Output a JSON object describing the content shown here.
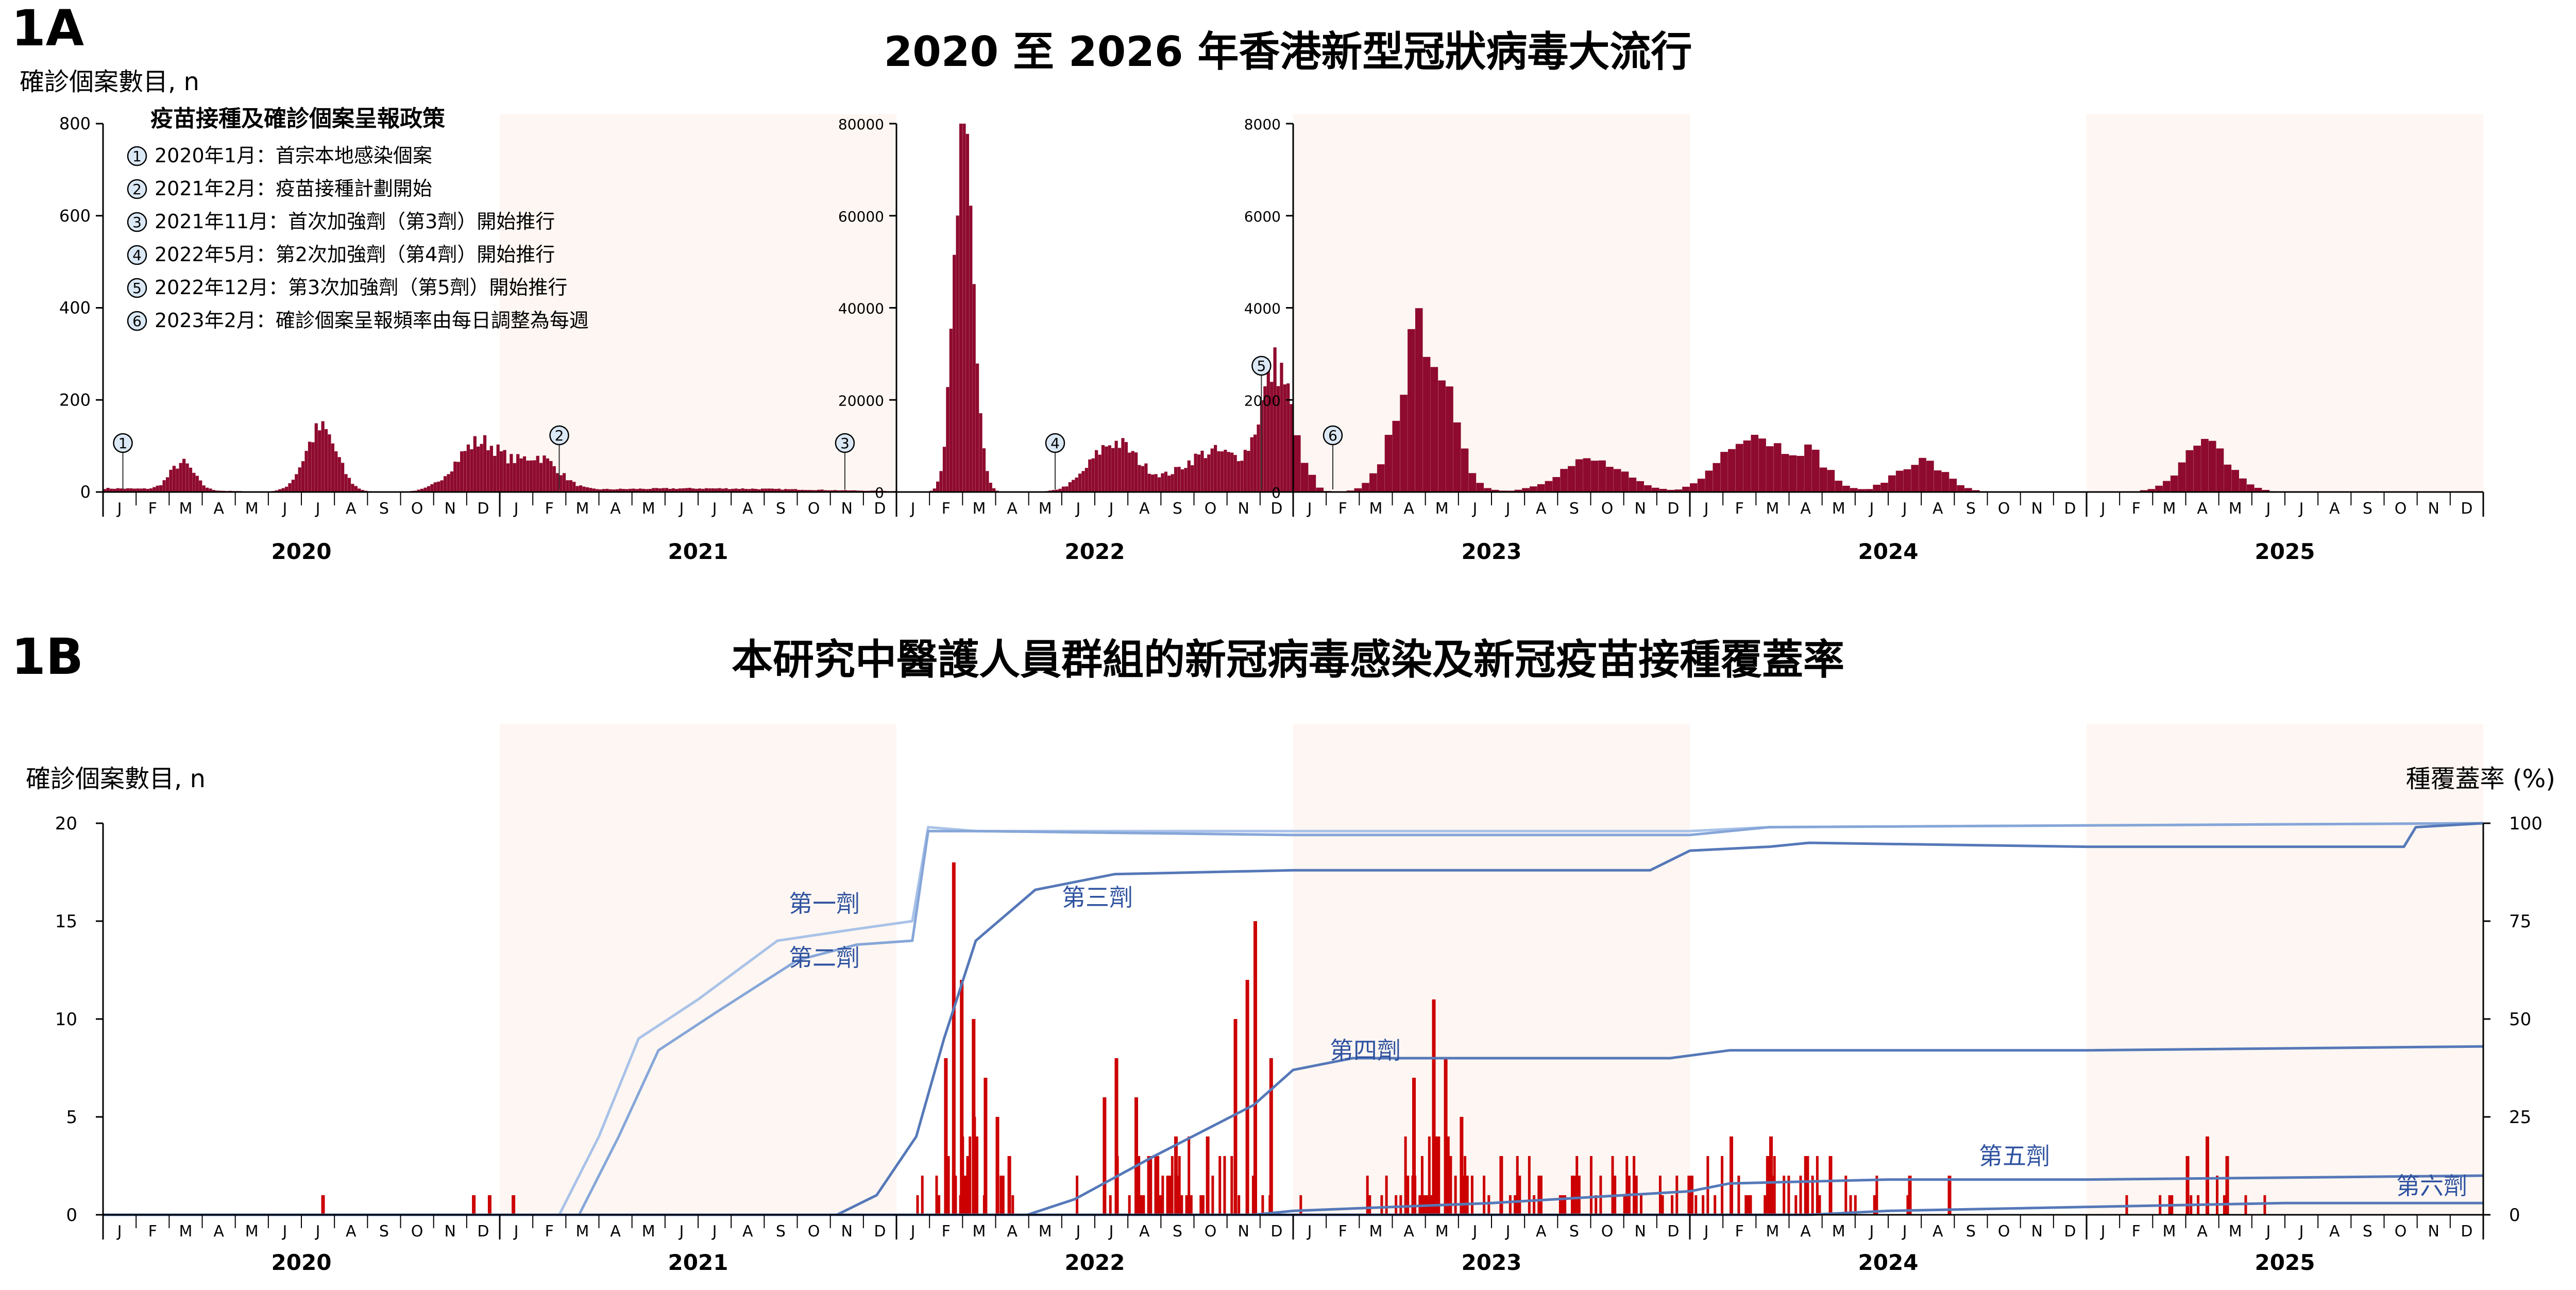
{
  "colors": {
    "bar": "#8e0a2e",
    "bar_b": "#cc0000",
    "shade": "#fdf6f2",
    "dose1": "#a9c2e8",
    "dose2": "#86a6d8",
    "dose_other": "#5578b8",
    "dose_label": "#2f52a0",
    "axis": "#000000"
  },
  "month_ticks": [
    "J",
    "F",
    "M",
    "A",
    "M",
    "J",
    "J",
    "A",
    "S",
    "O",
    "N",
    "D"
  ],
  "years": [
    "2020",
    "2021",
    "2022",
    "2023",
    "2024",
    "2025"
  ],
  "panel_a": {
    "label": "1A",
    "title": "2020 至 2026 年香港新型冠狀病毒大流行",
    "ylabel": "確診個案數目, n",
    "policy_title": "疫苗接種及確診個案呈報政策",
    "policies": [
      {
        "num": "1",
        "text": "2020年1月：首宗本地感染個案",
        "date": 2020.05,
        "y": 0.0
      },
      {
        "num": "2",
        "text": "2021年2月：疫苗接種計劃開始",
        "date": 2021.15,
        "y": 0.0
      },
      {
        "num": "3",
        "text": "2021年11月：首次加強劑（第3劑）開始推行",
        "date": 2021.87,
        "y": 0.0
      },
      {
        "num": "4",
        "text": "2022年5月：第2次加強劑（第4劑）開始推行",
        "date": 2022.4,
        "y": 0.0
      },
      {
        "num": "5",
        "text": "2022年12月：第3次加強劑（第5劑）開始推行",
        "date": 2022.92,
        "y": 0.0
      },
      {
        "num": "6",
        "text": "2023年2月：確診個案呈報頻率由每日調整為每週",
        "date": 2023.1,
        "y": 0.0
      }
    ]
  },
  "panel_b": {
    "label": "1B",
    "title": "本研究中醫護人員群組的新冠病毒感染及新冠疫苗接種覆蓋率",
    "ylabel_left": "確診個案數目, n",
    "ylabel_right": "種覆蓋率 (%)",
    "dose_labels": [
      "第一劑",
      "第二劑",
      "第三劑",
      "第四劑",
      "第五劑",
      "第六劑"
    ]
  },
  "chart_data": [
    {
      "type": "bar",
      "segment": "2020-2021 daily cases",
      "x_range": [
        2020.0,
        2022.0
      ],
      "ylim": [
        0,
        800
      ],
      "yticks": [
        0,
        200,
        400,
        600,
        800
      ],
      "waves": [
        [
          2020.0,
          8,
          0.2
        ],
        [
          2020.2,
          60,
          0.03
        ],
        [
          2020.55,
          140,
          0.04
        ],
        [
          2020.95,
          110,
          0.06
        ],
        [
          2021.1,
          70,
          0.05
        ],
        [
          2021.5,
          8,
          0.3
        ]
      ]
    },
    {
      "type": "bar",
      "segment": "2022 daily cases",
      "x_range": [
        2022.0,
        2023.0
      ],
      "ylim": [
        0,
        80000
      ],
      "yticks": [
        0,
        20000,
        40000,
        60000,
        80000
      ],
      "waves": [
        [
          2022.17,
          77000,
          0.025
        ],
        [
          2022.55,
          11000,
          0.06
        ],
        [
          2022.96,
          27000,
          0.04
        ],
        [
          2022.8,
          9000,
          0.08
        ]
      ]
    },
    {
      "type": "bar",
      "segment": "2023-2025 weekly cases",
      "x_range": [
        2023.0,
        2026.0
      ],
      "ylim": [
        0,
        8000
      ],
      "yticks": [
        0,
        2000,
        4000,
        6000,
        8000
      ],
      "waves": [
        [
          2023.0,
          1200,
          0.03
        ],
        [
          2023.33,
          3600,
          0.06
        ],
        [
          2023.75,
          700,
          0.08
        ],
        [
          2024.15,
          1350,
          0.07
        ],
        [
          2024.3,
          800,
          0.05
        ],
        [
          2024.58,
          700,
          0.06
        ],
        [
          2025.3,
          1050,
          0.06
        ]
      ]
    },
    {
      "type": "bar+line",
      "segment": "healthcare cohort infections and dose coverage",
      "x_range": [
        2020.0,
        2026.0
      ],
      "ylim_left": [
        0,
        20
      ],
      "yticks_left": [
        0,
        5,
        10,
        15,
        20
      ],
      "ylim_right": [
        0,
        100
      ],
      "yticks_right": [
        0,
        25,
        50,
        75,
        100
      ],
      "bars": [
        [
          2020.55,
          1
        ],
        [
          2020.93,
          1
        ],
        [
          2020.97,
          1
        ],
        [
          2021.03,
          1
        ],
        [
          2022.12,
          8
        ],
        [
          2022.16,
          12
        ],
        [
          2022.14,
          18
        ],
        [
          2022.19,
          10
        ],
        [
          2022.22,
          7
        ],
        [
          2022.25,
          5
        ],
        [
          2022.28,
          3
        ],
        [
          2022.52,
          6
        ],
        [
          2022.55,
          8
        ],
        [
          2022.6,
          6
        ],
        [
          2022.7,
          4
        ],
        [
          2022.78,
          4
        ],
        [
          2022.85,
          10
        ],
        [
          2022.9,
          15
        ],
        [
          2022.88,
          12
        ],
        [
          2022.94,
          8
        ],
        [
          2023.3,
          7
        ],
        [
          2023.35,
          11
        ],
        [
          2023.38,
          8
        ],
        [
          2023.42,
          5
        ],
        [
          2023.52,
          3
        ],
        [
          2023.7,
          2
        ],
        [
          2024.0,
          2
        ],
        [
          2024.1,
          4
        ],
        [
          2024.2,
          4
        ],
        [
          2024.35,
          3
        ],
        [
          2024.55,
          2
        ],
        [
          2024.65,
          2
        ],
        [
          2025.25,
          3
        ],
        [
          2025.3,
          4
        ],
        [
          2025.35,
          3
        ]
      ],
      "series": [
        {
          "name": "第一劑",
          "points": [
            [
              2020.0,
              0
            ],
            [
              2021.15,
              0
            ],
            [
              2021.25,
              20
            ],
            [
              2021.35,
              45
            ],
            [
              2021.5,
              55
            ],
            [
              2021.7,
              70
            ],
            [
              2021.9,
              73
            ],
            [
              2022.04,
              75
            ],
            [
              2022.08,
              99
            ],
            [
              2022.2,
              98
            ],
            [
              2023.0,
              98
            ],
            [
              2024.0,
              98
            ],
            [
              2024.2,
              99
            ],
            [
              2026.0,
              100
            ]
          ]
        },
        {
          "name": "第二劑",
          "points": [
            [
              2020.0,
              0
            ],
            [
              2021.2,
              0
            ],
            [
              2021.3,
              20
            ],
            [
              2021.4,
              42
            ],
            [
              2021.55,
              52
            ],
            [
              2021.75,
              65
            ],
            [
              2021.9,
              69
            ],
            [
              2022.04,
              70
            ],
            [
              2022.08,
              98
            ],
            [
              2022.2,
              98
            ],
            [
              2023.0,
              97
            ],
            [
              2024.0,
              97
            ],
            [
              2024.2,
              99
            ],
            [
              2026.0,
              100
            ]
          ]
        },
        {
          "name": "第三劑",
          "points": [
            [
              2020.0,
              0
            ],
            [
              2021.85,
              0
            ],
            [
              2021.95,
              5
            ],
            [
              2022.05,
              20
            ],
            [
              2022.12,
              45
            ],
            [
              2022.2,
              70
            ],
            [
              2022.35,
              83
            ],
            [
              2022.55,
              87
            ],
            [
              2023.0,
              88
            ],
            [
              2023.5,
              88
            ],
            [
              2023.9,
              88
            ],
            [
              2024.0,
              93
            ],
            [
              2024.2,
              94
            ],
            [
              2024.3,
              95
            ],
            [
              2025.0,
              94
            ],
            [
              2025.8,
              94
            ],
            [
              2025.83,
              99
            ],
            [
              2026.0,
              100
            ]
          ]
        },
        {
          "name": "第四劑",
          "points": [
            [
              2020.0,
              0
            ],
            [
              2022.33,
              0
            ],
            [
              2022.45,
              4
            ],
            [
              2022.65,
              15
            ],
            [
              2022.9,
              28
            ],
            [
              2023.0,
              37
            ],
            [
              2023.15,
              40
            ],
            [
              2023.5,
              40
            ],
            [
              2023.95,
              40
            ],
            [
              2024.1,
              42
            ],
            [
              2024.5,
              42
            ],
            [
              2025.0,
              42
            ],
            [
              2026.0,
              43
            ]
          ]
        },
        {
          "name": "第五劑",
          "points": [
            [
              2020.0,
              0
            ],
            [
              2022.9,
              0
            ],
            [
              2023.0,
              1
            ],
            [
              2023.5,
              3
            ],
            [
              2024.0,
              6
            ],
            [
              2024.1,
              8
            ],
            [
              2024.5,
              9
            ],
            [
              2025.0,
              9
            ],
            [
              2026.0,
              10
            ]
          ]
        },
        {
          "name": "第六劑",
          "points": [
            [
              2020.0,
              0
            ],
            [
              2024.3,
              0
            ],
            [
              2024.5,
              1
            ],
            [
              2025.0,
              2
            ],
            [
              2025.5,
              3
            ],
            [
              2026.0,
              3
            ]
          ]
        }
      ]
    }
  ]
}
